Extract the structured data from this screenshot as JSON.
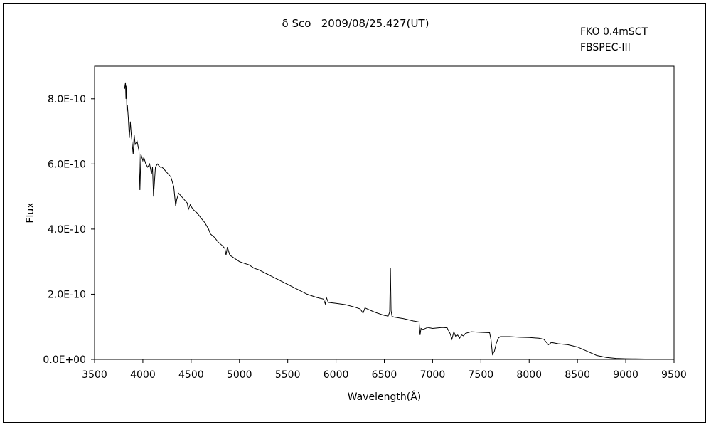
{
  "chart_data": {
    "type": "line",
    "title": "δ Sco   2009/08/25.427(UT)",
    "annotations": [
      "FKO 0.4mSCT",
      "FBSPEC-III"
    ],
    "xlabel": "Wavelength(Å)",
    "ylabel": "Flux",
    "xlim": [
      3500,
      9500
    ],
    "ylim": [
      0,
      9e-10
    ],
    "x_ticks": [
      3500,
      4000,
      4500,
      5000,
      5500,
      6000,
      6500,
      7000,
      7500,
      8000,
      8500,
      9000,
      9500
    ],
    "x_tick_labels": [
      "3500",
      "4000",
      "4500",
      "5000",
      "5500",
      "6000",
      "6500",
      "7000",
      "7500",
      "8000",
      "8500",
      "9000",
      "9500"
    ],
    "y_ticks": [
      0,
      2e-10,
      4e-10,
      6e-10,
      8e-10
    ],
    "y_tick_labels": [
      "0.0E+00",
      "2.0E-10",
      "4.0E-10",
      "6.0E-10",
      "8.0E-10"
    ],
    "grid": false,
    "legend": "none",
    "line_color": "#000000",
    "series": [
      {
        "x": [
          3810,
          3820,
          3825,
          3830,
          3835,
          3840,
          3850,
          3860,
          3870,
          3880,
          3890,
          3900,
          3910,
          3920,
          3940,
          3960,
          3970,
          3980,
          3990,
          4000,
          4010,
          4030,
          4050,
          4070,
          4090,
          4100,
          4110,
          4130,
          4150,
          4180,
          4200,
          4230,
          4260,
          4290,
          4320,
          4340,
          4350,
          4370,
          4400,
          4430,
          4460,
          4471,
          4490,
          4520,
          4560,
          4600,
          4640,
          4680,
          4700,
          4740,
          4780,
          4820,
          4850,
          4861,
          4875,
          4900,
          4950,
          5000,
          5050,
          5100,
          5150,
          5200,
          5300,
          5400,
          5500,
          5600,
          5700,
          5800,
          5870,
          5890,
          5900,
          5920,
          6000,
          6100,
          6200,
          6250,
          6280,
          6300,
          6400,
          6500,
          6540,
          6555,
          6563,
          6570,
          6580,
          6600,
          6700,
          6800,
          6860,
          6870,
          6880,
          6900,
          6950,
          7000,
          7100,
          7150,
          7180,
          7200,
          7220,
          7240,
          7260,
          7280,
          7300,
          7320,
          7340,
          7400,
          7500,
          7590,
          7605,
          7620,
          7640,
          7660,
          7680,
          7700,
          7800,
          7900,
          8000,
          8100,
          8150,
          8200,
          8230,
          8300,
          8400,
          8500,
          8600,
          8700,
          8800,
          8900,
          9000,
          9100,
          9200,
          9300,
          9400,
          9500
        ],
        "y": [
          8.3e-10,
          8.5e-10,
          8e-10,
          8.4e-10,
          7.6e-10,
          7.8e-10,
          7.4e-10,
          6.8e-10,
          7.3e-10,
          6.9e-10,
          6.6e-10,
          6.3e-10,
          6.9e-10,
          6.6e-10,
          6.7e-10,
          6.4e-10,
          5.2e-10,
          6.3e-10,
          6.2e-10,
          6.1e-10,
          6.2e-10,
          6e-10,
          5.9e-10,
          6e-10,
          5.7e-10,
          5.9e-10,
          5e-10,
          5.9e-10,
          6e-10,
          5.9e-10,
          5.9e-10,
          5.8e-10,
          5.7e-10,
          5.6e-10,
          5.3e-10,
          4.7e-10,
          4.9e-10,
          5.1e-10,
          5e-10,
          4.9e-10,
          4.8e-10,
          4.6e-10,
          4.75e-10,
          4.6e-10,
          4.5e-10,
          4.35e-10,
          4.2e-10,
          4e-10,
          3.85e-10,
          3.75e-10,
          3.6e-10,
          3.5e-10,
          3.4e-10,
          3.2e-10,
          3.45e-10,
          3.2e-10,
          3.1e-10,
          3e-10,
          2.95e-10,
          2.9e-10,
          2.8e-10,
          2.75e-10,
          2.6e-10,
          2.45e-10,
          2.3e-10,
          2.15e-10,
          2e-10,
          1.9e-10,
          1.85e-10,
          1.7e-10,
          1.9e-10,
          1.75e-10,
          1.72e-10,
          1.68e-10,
          1.6e-10,
          1.55e-10,
          1.42e-10,
          1.58e-10,
          1.45e-10,
          1.35e-10,
          1.33e-10,
          1.45e-10,
          2.8e-10,
          1.5e-10,
          1.32e-10,
          1.3e-10,
          1.25e-10,
          1.18e-10,
          1.15e-10,
          7.5e-11,
          9.5e-11,
          9.2e-11,
          9.8e-11,
          9.5e-11,
          9.8e-11,
          9.7e-11,
          8e-11,
          6.2e-11,
          8.5e-11,
          7e-11,
          7.5e-11,
          6.5e-11,
          7.5e-11,
          7.2e-11,
          8e-11,
          8.5e-11,
          8.3e-11,
          8.2e-11,
          6e-11,
          1.5e-11,
          2.5e-11,
          5e-11,
          6.5e-11,
          7e-11,
          7e-11,
          6.8e-11,
          6.7e-11,
          6.5e-11,
          6.2e-11,
          4.5e-11,
          5.2e-11,
          4.8e-11,
          4.5e-11,
          3.8e-11,
          2.5e-11,
          1.2e-11,
          6e-12,
          3e-12,
          2e-12,
          1.5e-12,
          1e-12,
          8e-13,
          5e-13,
          3e-13
        ]
      }
    ]
  }
}
